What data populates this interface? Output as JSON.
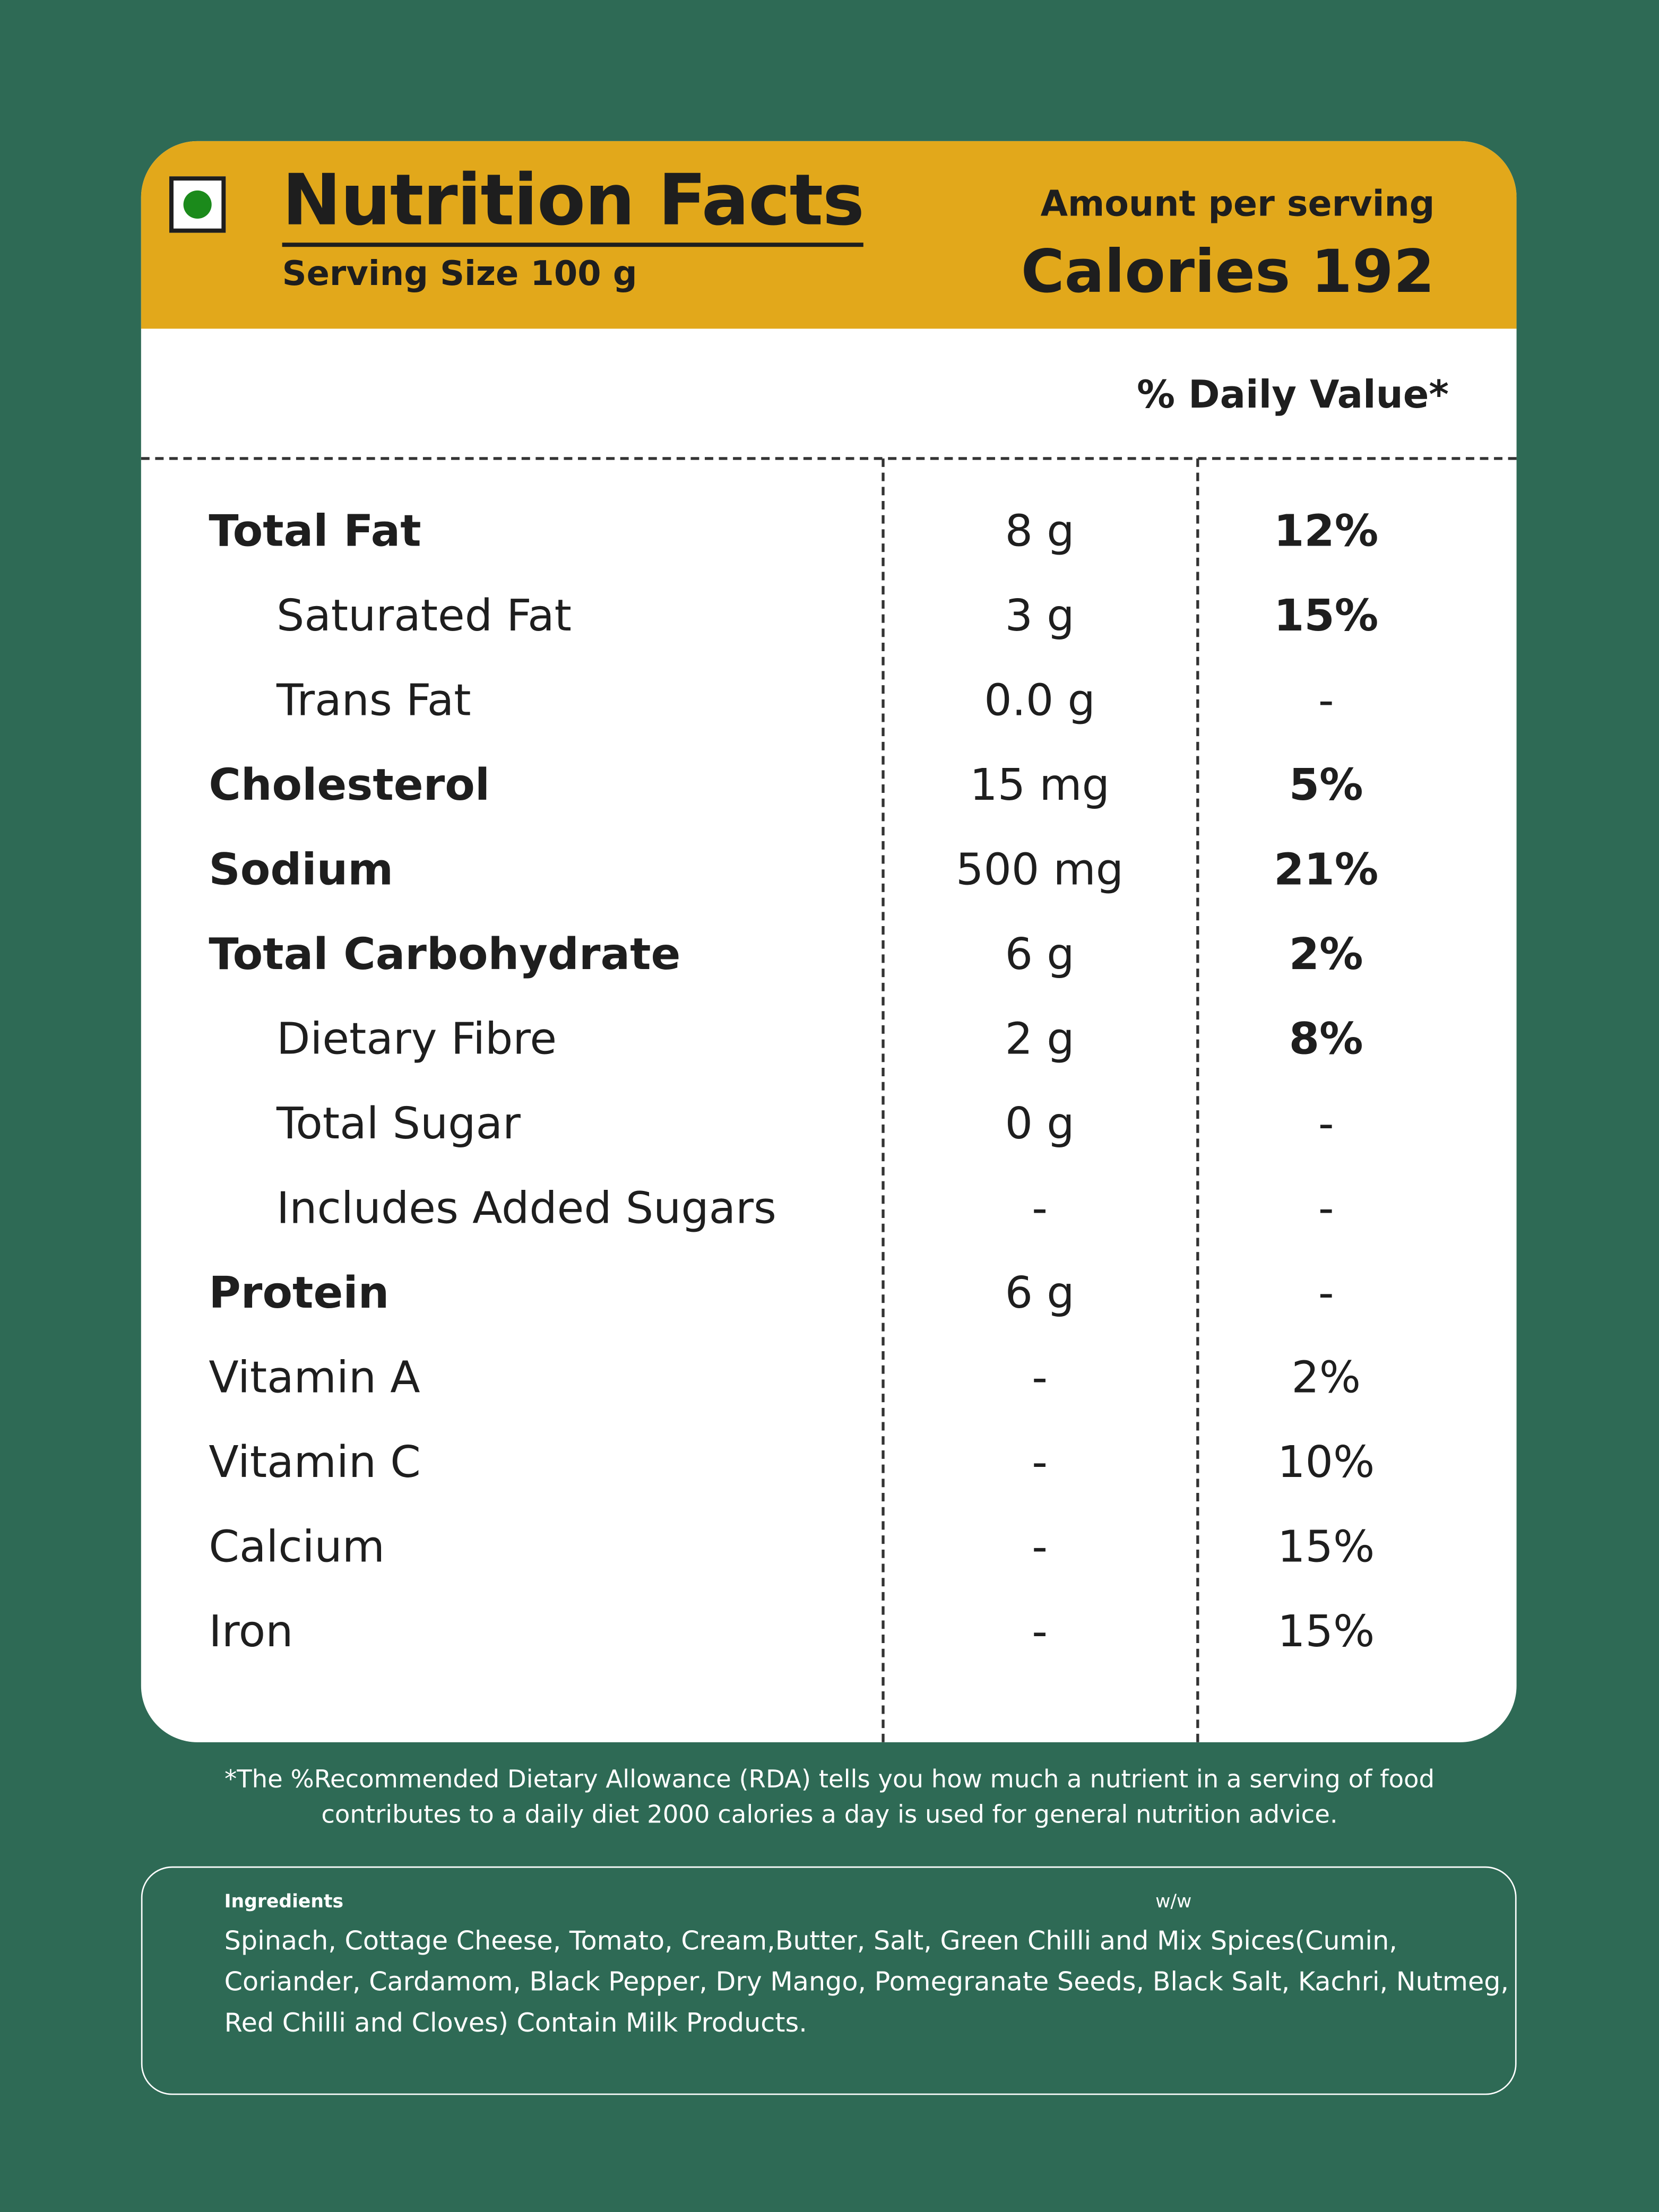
{
  "header": {
    "title": "Nutrition Facts",
    "serving_size": "Serving Size  100 g",
    "amount_per_serving": "Amount per serving",
    "calories": "Calories 192"
  },
  "daily_value_header": "% Daily Value*",
  "table": {
    "rows": [
      [
        "Total Fat",
        "8 g",
        "12%"
      ],
      [
        "Saturated Fat",
        "3 g",
        "15%"
      ],
      [
        "Trans Fat",
        "0.0 g",
        "-"
      ],
      [
        "Cholesterol",
        "15 mg",
        "5%"
      ],
      [
        "Sodium",
        "500 mg",
        "21%"
      ],
      [
        "Total Carbohydrate",
        "6 g",
        "2%"
      ],
      [
        "Dietary Fibre",
        "2 g",
        "8%"
      ],
      [
        "Total Sugar",
        "0 g",
        "-"
      ],
      [
        "Includes Added Sugars",
        "-",
        "-"
      ],
      [
        "Protein",
        "6 g",
        "-"
      ],
      [
        "Vitamin A",
        "-",
        "2%"
      ],
      [
        "Vitamin C",
        "-",
        "10%"
      ],
      [
        "Calcium",
        "-",
        "15%"
      ],
      [
        "Iron",
        "-",
        "15%"
      ]
    ],
    "bold_rows": [
      0,
      3,
      4,
      5,
      9
    ],
    "indented_rows": [
      1,
      2,
      6,
      7,
      8
    ],
    "bold_dv_rows": [
      0,
      1,
      3,
      4,
      5,
      6
    ]
  },
  "footnote": "*The %Recommended Dietary Allowance (RDA) tells you how much a nutrient in a serving of food contributes to a daily diet 2000 calories a day is used for general nutrition advice.",
  "ingredients": {
    "label": "Ingredients",
    "unit": "w/w",
    "text": "Spinach, Cottage Cheese, Tomato, Cream,Butter, Salt, Green Chilli and Mix Spices(Cumin, Coriander, Cardamom, Black Pepper, Dry Mango, Pomegranate Seeds, Black Salt, Kachri, Nutmeg, Red Chilli and Cloves) Contain Milk Products."
  }
}
